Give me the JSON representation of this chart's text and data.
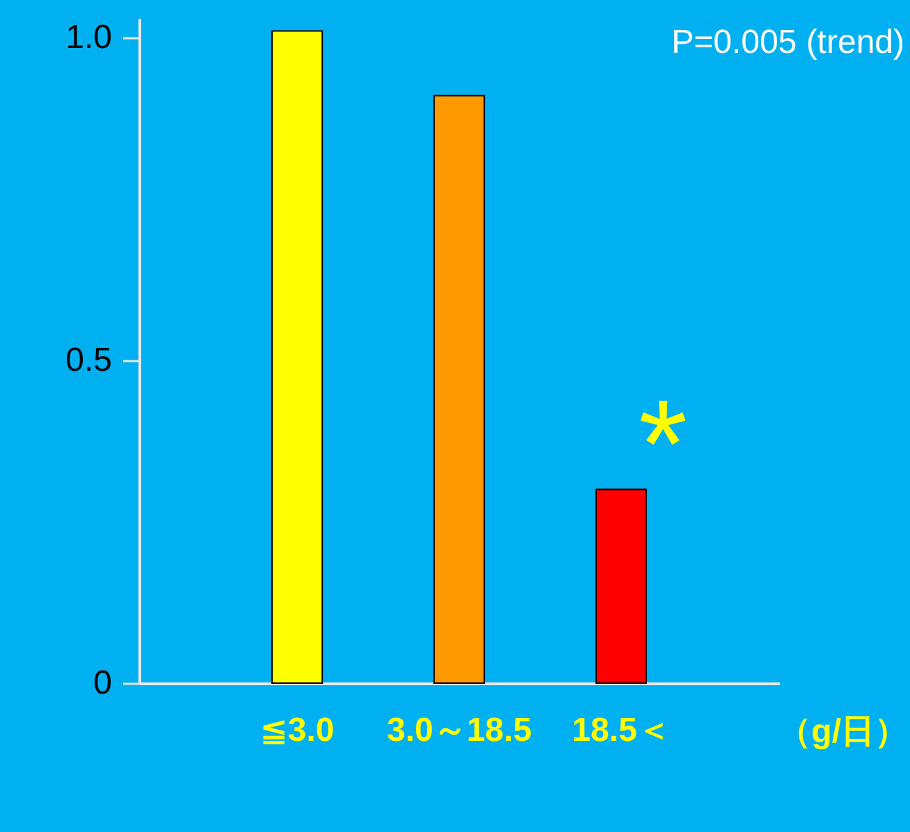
{
  "chart_data": {
    "type": "bar",
    "categories": [
      "≦3.0",
      "3.0～18.5",
      "18.5＜"
    ],
    "xlabel": "（g/日）",
    "values": [
      1.01,
      0.91,
      0.3
    ],
    "colors": [
      "#ffff00",
      "#ff9900",
      "#ff0000"
    ],
    "ylim": [
      0,
      1.03
    ],
    "yticks": [
      {
        "value": 0,
        "label": "0"
      },
      {
        "value": 0.5,
        "label": "0.5"
      },
      {
        "value": 1,
        "label": "1.0"
      }
    ],
    "grid": false,
    "annotations": [
      "P=0.005 (trend)",
      "*"
    ]
  }
}
